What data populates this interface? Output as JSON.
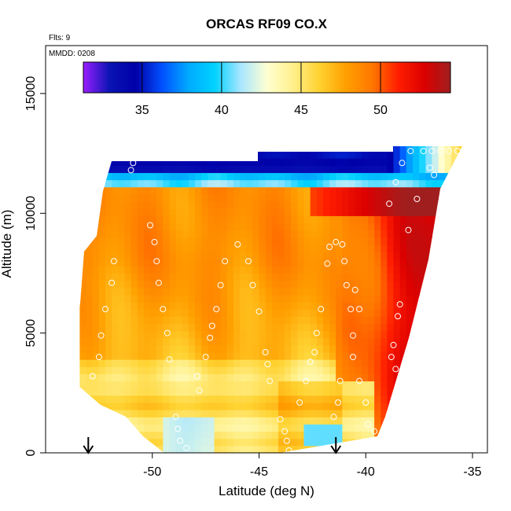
{
  "chart_data": {
    "type": "heatmap",
    "title": "ORCAS RF09 CO.X",
    "annotations": [
      "Flts: 9",
      "MMDD: 0208"
    ],
    "xlabel": "Latitude (deg N)",
    "ylabel": "Altitude (m)",
    "xlim": [
      -55,
      -34.3
    ],
    "ylim": [
      0,
      17000
    ],
    "x_ticks": [
      -50,
      -45,
      -40,
      -35
    ],
    "x_tick_labels": [
      "-50",
      "-45",
      "-40",
      "-35"
    ],
    "y_ticks": [
      0,
      5000,
      10000,
      15000
    ],
    "y_tick_labels": [
      "0",
      "5000",
      "10000",
      "15000"
    ],
    "colorbar": {
      "min": 31.3,
      "max": 54.4,
      "ticks": [
        35,
        40,
        45,
        50
      ],
      "tick_labels": [
        "35",
        "40",
        "45",
        "50"
      ],
      "colors": [
        "#9a1fff",
        "#0a14b4",
        "#0000a8",
        "#0050ff",
        "#00aaff",
        "#00d2ff",
        "#a8e6ff",
        "#ffffd2",
        "#fff08c",
        "#ffd230",
        "#ffa000",
        "#ff7800",
        "#ff1e00",
        "#dc0000",
        "#a01e1e"
      ]
    },
    "arrows_at_latitude": [
      -53,
      -41.4
    ],
    "profile_points": [
      {
        "lat": -52.8,
        "alt": 3200
      },
      {
        "lat": -52.5,
        "alt": 4000
      },
      {
        "lat": -52.4,
        "alt": 4900
      },
      {
        "lat": -52.2,
        "alt": 6000
      },
      {
        "lat": -51.9,
        "alt": 7100
      },
      {
        "lat": -51.8,
        "alt": 8000
      },
      {
        "lat": -50.9,
        "alt": 12100
      },
      {
        "lat": -51.0,
        "alt": 11800
      },
      {
        "lat": -50.1,
        "alt": 9500
      },
      {
        "lat": -49.9,
        "alt": 8800
      },
      {
        "lat": -49.8,
        "alt": 8000
      },
      {
        "lat": -49.7,
        "alt": 7100
      },
      {
        "lat": -49.5,
        "alt": 6000
      },
      {
        "lat": -49.3,
        "alt": 5000
      },
      {
        "lat": -49.2,
        "alt": 3900
      },
      {
        "lat": -48.9,
        "alt": 1500
      },
      {
        "lat": -48.8,
        "alt": 1000
      },
      {
        "lat": -48.7,
        "alt": 500
      },
      {
        "lat": -48.4,
        "alt": 200
      },
      {
        "lat": -47.8,
        "alt": 2600
      },
      {
        "lat": -47.9,
        "alt": 3200
      },
      {
        "lat": -47.5,
        "alt": 4000
      },
      {
        "lat": -47.3,
        "alt": 4800
      },
      {
        "lat": -47.2,
        "alt": 5300
      },
      {
        "lat": -47.0,
        "alt": 6000
      },
      {
        "lat": -46.8,
        "alt": 7000
      },
      {
        "lat": -46.6,
        "alt": 8000
      },
      {
        "lat": -46.0,
        "alt": 8700
      },
      {
        "lat": -45.5,
        "alt": 8000
      },
      {
        "lat": -45.3,
        "alt": 7000
      },
      {
        "lat": -45.0,
        "alt": 5900
      },
      {
        "lat": -44.7,
        "alt": 4200
      },
      {
        "lat": -44.6,
        "alt": 3700
      },
      {
        "lat": -44.5,
        "alt": 3000
      },
      {
        "lat": -44.0,
        "alt": 1400
      },
      {
        "lat": -43.8,
        "alt": 900
      },
      {
        "lat": -43.7,
        "alt": 500
      },
      {
        "lat": -43.6,
        "alt": 100
      },
      {
        "lat": -43.1,
        "alt": 2100
      },
      {
        "lat": -42.8,
        "alt": 3000
      },
      {
        "lat": -42.6,
        "alt": 3800
      },
      {
        "lat": -42.4,
        "alt": 4200
      },
      {
        "lat": -42.3,
        "alt": 5000
      },
      {
        "lat": -42.1,
        "alt": 6000
      },
      {
        "lat": -41.8,
        "alt": 7900
      },
      {
        "lat": -41.7,
        "alt": 8600
      },
      {
        "lat": -41.4,
        "alt": 8800
      },
      {
        "lat": -41.1,
        "alt": 8700
      },
      {
        "lat": -41.0,
        "alt": 8000
      },
      {
        "lat": -40.9,
        "alt": 7000
      },
      {
        "lat": -40.7,
        "alt": 6000
      },
      {
        "lat": -40.6,
        "alt": 4900
      },
      {
        "lat": -40.6,
        "alt": 4000
      },
      {
        "lat": -40.3,
        "alt": 3000
      },
      {
        "lat": -40.3,
        "alt": 6000
      },
      {
        "lat": -40.5,
        "alt": 6800
      },
      {
        "lat": -40.0,
        "alt": 2100
      },
      {
        "lat": -39.9,
        "alt": 1200
      },
      {
        "lat": -39.8,
        "alt": 500
      },
      {
        "lat": -39.7,
        "alt": 100
      },
      {
        "lat": -39.6,
        "alt": 900
      },
      {
        "lat": -41.5,
        "alt": 1500
      },
      {
        "lat": -41.3,
        "alt": 2100
      },
      {
        "lat": -41.2,
        "alt": 3000
      },
      {
        "lat": -38.9,
        "alt": 10400
      },
      {
        "lat": -38.6,
        "alt": 11300
      },
      {
        "lat": -38.3,
        "alt": 12100
      },
      {
        "lat": -38.0,
        "alt": 9300
      },
      {
        "lat": -37.6,
        "alt": 10600
      },
      {
        "lat": -37.9,
        "alt": 12600
      },
      {
        "lat": -38.5,
        "alt": 5700
      },
      {
        "lat": -38.4,
        "alt": 6200
      },
      {
        "lat": -38.7,
        "alt": 4500
      },
      {
        "lat": -38.8,
        "alt": 4000
      },
      {
        "lat": -38.6,
        "alt": 3500
      },
      {
        "lat": -38.3,
        "alt": 3000
      },
      {
        "lat": -37.3,
        "alt": 12600
      },
      {
        "lat": -36.9,
        "alt": 12600
      },
      {
        "lat": -36.5,
        "alt": 12600
      },
      {
        "lat": -36.1,
        "alt": 12600
      },
      {
        "lat": -35.7,
        "alt": 12600
      },
      {
        "lat": -35.3,
        "alt": 12600
      },
      {
        "lat": -37.0,
        "alt": 11900
      },
      {
        "lat": -36.8,
        "alt": 11600
      }
    ]
  }
}
